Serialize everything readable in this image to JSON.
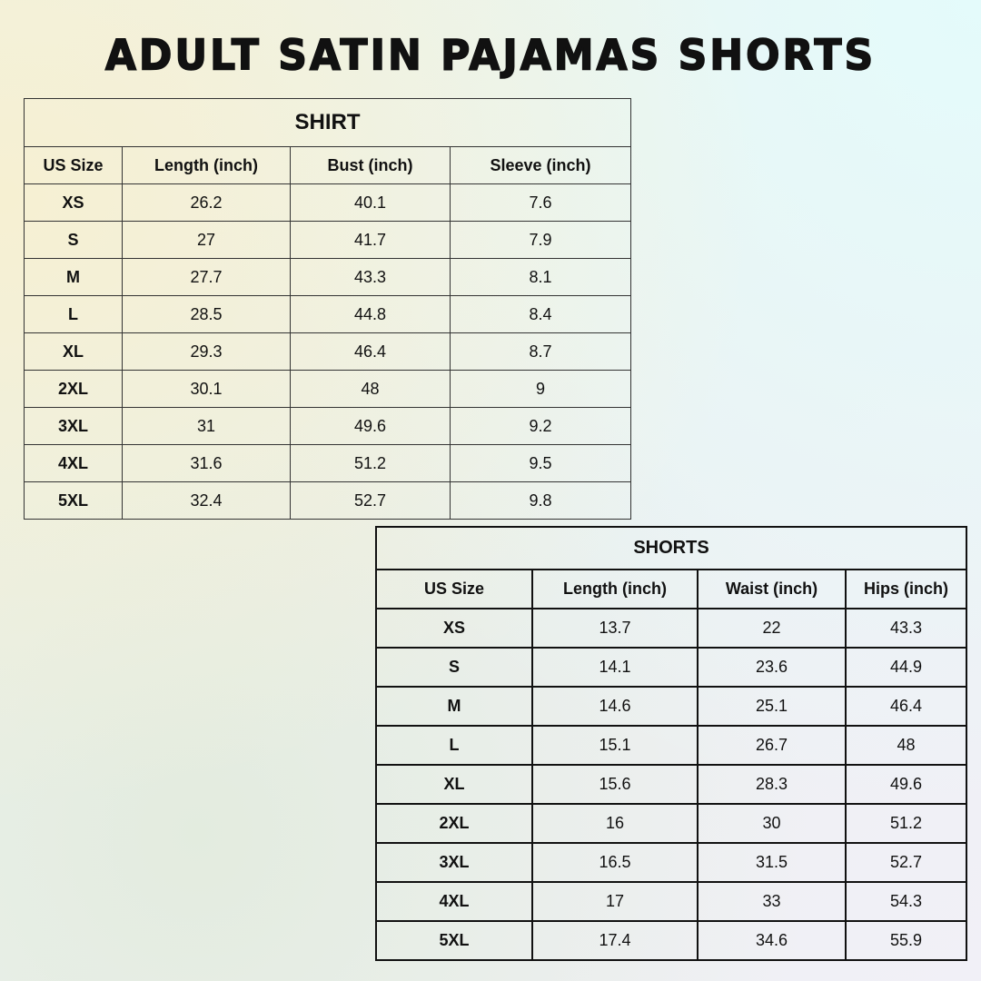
{
  "title": "ADULT SATIN PAJAMAS SHORTS",
  "shirt": {
    "title": "SHIRT",
    "headers": [
      "US Size",
      "Length (inch)",
      "Bust (inch)",
      "Sleeve (inch)"
    ],
    "rows": [
      [
        "XS",
        "26.2",
        "40.1",
        "7.6"
      ],
      [
        "S",
        "27",
        "41.7",
        "7.9"
      ],
      [
        "M",
        "27.7",
        "43.3",
        "8.1"
      ],
      [
        "L",
        "28.5",
        "44.8",
        "8.4"
      ],
      [
        "XL",
        "29.3",
        "46.4",
        "8.7"
      ],
      [
        "2XL",
        "30.1",
        "48",
        "9"
      ],
      [
        "3XL",
        "31",
        "49.6",
        "9.2"
      ],
      [
        "4XL",
        "31.6",
        "51.2",
        "9.5"
      ],
      [
        "5XL",
        "32.4",
        "52.7",
        "9.8"
      ]
    ]
  },
  "shorts": {
    "title": "SHORTS",
    "headers": [
      "US Size",
      "Length (inch)",
      "Waist (inch)",
      "Hips (inch)"
    ],
    "rows": [
      [
        "XS",
        "13.7",
        "22",
        "43.3"
      ],
      [
        "S",
        "14.1",
        "23.6",
        "44.9"
      ],
      [
        "M",
        "14.6",
        "25.1",
        "46.4"
      ],
      [
        "L",
        "15.1",
        "26.7",
        "48"
      ],
      [
        "XL",
        "15.6",
        "28.3",
        "49.6"
      ],
      [
        "2XL",
        "16",
        "30",
        "51.2"
      ],
      [
        "3XL",
        "16.5",
        "31.5",
        "52.7"
      ],
      [
        "4XL",
        "17",
        "33",
        "54.3"
      ],
      [
        "5XL",
        "17.4",
        "34.6",
        "55.9"
      ]
    ]
  }
}
